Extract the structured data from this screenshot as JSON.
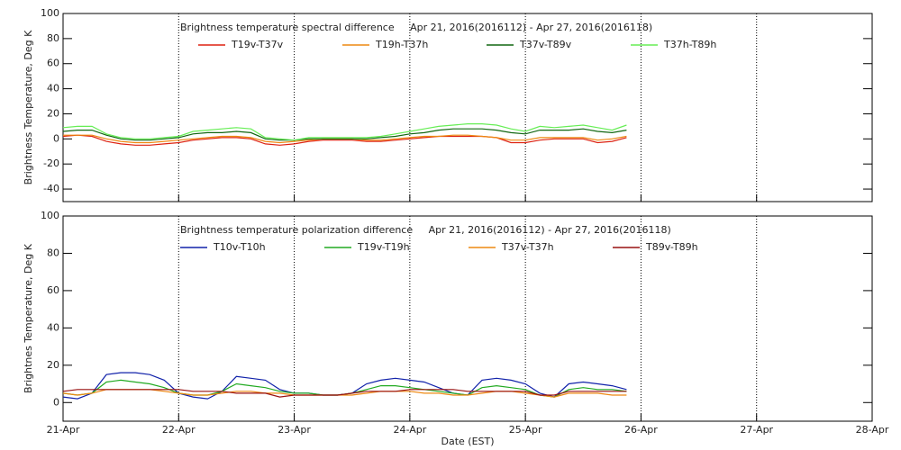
{
  "chart_data": [
    {
      "type": "line",
      "title": "Brightness temperature spectral difference     Apr 21, 2016(2016112) - Apr 27, 2016(2016118)",
      "y_label": "Brightness Temperature, Deg K",
      "x": [
        0,
        0.125,
        0.25,
        0.375,
        0.5,
        0.625,
        0.75,
        0.875,
        1,
        1.125,
        1.25,
        1.375,
        1.5,
        1.625,
        1.75,
        1.875,
        2,
        2.125,
        2.25,
        2.375,
        2.5,
        2.625,
        2.75,
        2.875,
        3,
        3.125,
        3.25,
        3.375,
        3.5,
        3.625,
        3.75,
        3.875,
        4,
        4.125,
        4.25,
        4.375,
        4.5,
        4.625,
        4.75,
        4.875
      ],
      "series": [
        {
          "name": "T19v-T37v",
          "color": "#dd2211",
          "values": [
            2,
            3,
            2,
            -2,
            -4,
            -5,
            -5,
            -4,
            -3,
            -1,
            0,
            1,
            1,
            0,
            -4,
            -5,
            -4,
            -2,
            -1,
            -1,
            -1,
            -2,
            -2,
            -1,
            0,
            1,
            2,
            2,
            2,
            2,
            1,
            -3,
            -3,
            -1,
            0,
            0,
            0,
            -3,
            -2,
            1
          ]
        },
        {
          "name": "T19h-T37h",
          "color": "#ee8811",
          "values": [
            3,
            3,
            3,
            0,
            -2,
            -3,
            -3,
            -2,
            -1,
            0,
            1,
            2,
            2,
            1,
            -2,
            -3,
            -2,
            -1,
            0,
            0,
            0,
            -1,
            -1,
            0,
            1,
            2,
            2,
            3,
            3,
            2,
            1,
            -1,
            -1,
            1,
            1,
            1,
            1,
            -1,
            0,
            2
          ]
        },
        {
          "name": "T37v-T89v",
          "color": "#116611",
          "values": [
            6,
            7,
            7,
            3,
            0,
            -1,
            -1,
            0,
            1,
            4,
            5,
            5,
            6,
            5,
            0,
            -1,
            -1,
            0,
            0,
            0,
            0,
            0,
            1,
            2,
            4,
            5,
            7,
            8,
            8,
            8,
            7,
            5,
            4,
            7,
            7,
            7,
            8,
            6,
            5,
            7
          ]
        },
        {
          "name": "T37h-T89h",
          "color": "#66ee55",
          "values": [
            9,
            10,
            10,
            4,
            1,
            0,
            0,
            1,
            2,
            6,
            7,
            8,
            9,
            8,
            1,
            0,
            -1,
            1,
            1,
            1,
            1,
            1,
            2,
            4,
            6,
            8,
            10,
            11,
            12,
            12,
            11,
            8,
            6,
            10,
            9,
            10,
            11,
            9,
            7,
            11
          ]
        }
      ],
      "xlim": [
        0,
        7
      ],
      "xticks": [
        0,
        1,
        2,
        3,
        4,
        5,
        6,
        7
      ],
      "ylim": [
        -50,
        100
      ],
      "yticks": [
        -40,
        -20,
        0,
        20,
        40,
        60,
        80,
        100
      ],
      "grid": "x"
    },
    {
      "type": "line",
      "title": "Brightness temperature polarization difference     Apr 21, 2016(2016112) - Apr 27, 2016(2016118)",
      "y_label": "Brightnes Temperature, Deg K",
      "x_label": "Date (EST)",
      "x": [
        0,
        0.125,
        0.25,
        0.375,
        0.5,
        0.625,
        0.75,
        0.875,
        1,
        1.125,
        1.25,
        1.375,
        1.5,
        1.625,
        1.75,
        1.875,
        2,
        2.125,
        2.25,
        2.375,
        2.5,
        2.625,
        2.75,
        2.875,
        3,
        3.125,
        3.25,
        3.375,
        3.5,
        3.625,
        3.75,
        3.875,
        4,
        4.125,
        4.25,
        4.375,
        4.5,
        4.625,
        4.75,
        4.875
      ],
      "series": [
        {
          "name": "T10v-T10h",
          "color": "#1122aa",
          "values": [
            3,
            2,
            5,
            15,
            16,
            16,
            15,
            12,
            5,
            3,
            2,
            6,
            14,
            13,
            12,
            7,
            5,
            5,
            4,
            4,
            5,
            10,
            12,
            13,
            12,
            11,
            8,
            5,
            4,
            12,
            13,
            12,
            10,
            5,
            3,
            10,
            11,
            10,
            9,
            7
          ]
        },
        {
          "name": "T19v-T19h",
          "color": "#22aa22",
          "values": [
            5,
            4,
            5,
            11,
            12,
            11,
            10,
            8,
            5,
            4,
            4,
            6,
            10,
            9,
            8,
            6,
            5,
            5,
            4,
            4,
            5,
            7,
            9,
            9,
            8,
            7,
            6,
            5,
            4,
            8,
            9,
            8,
            7,
            4,
            3,
            7,
            8,
            7,
            7,
            6
          ]
        },
        {
          "name": "T37v-T37h",
          "color": "#ee8811",
          "values": [
            5,
            4,
            5,
            7,
            7,
            7,
            7,
            6,
            5,
            4,
            4,
            5,
            6,
            6,
            5,
            5,
            4,
            4,
            4,
            4,
            4,
            5,
            6,
            6,
            6,
            5,
            5,
            4,
            4,
            5,
            6,
            6,
            5,
            4,
            3,
            5,
            5,
            5,
            4,
            4
          ]
        },
        {
          "name": "T89v-T89h",
          "color": "#991111",
          "values": [
            6,
            7,
            7,
            7,
            7,
            7,
            7,
            7,
            7,
            6,
            6,
            6,
            5,
            5,
            5,
            3,
            4,
            4,
            4,
            4,
            5,
            6,
            6,
            6,
            7,
            7,
            7,
            7,
            6,
            6,
            6,
            6,
            6,
            4,
            4,
            6,
            6,
            6,
            6,
            6
          ]
        }
      ],
      "xlim": [
        0,
        7
      ],
      "xticks": [
        {
          "value": 0,
          "label": "21-Apr"
        },
        {
          "value": 1,
          "label": "22-Apr"
        },
        {
          "value": 2,
          "label": "23-Apr"
        },
        {
          "value": 3,
          "label": "24-Apr"
        },
        {
          "value": 4,
          "label": "25-Apr"
        },
        {
          "value": 5,
          "label": "26-Apr"
        },
        {
          "value": 6,
          "label": "27-Apr"
        },
        {
          "value": 7,
          "label": "28-Apr"
        }
      ],
      "ylim": [
        -10,
        100
      ],
      "yticks": [
        0,
        20,
        40,
        60,
        80,
        100
      ],
      "grid": "x"
    }
  ]
}
